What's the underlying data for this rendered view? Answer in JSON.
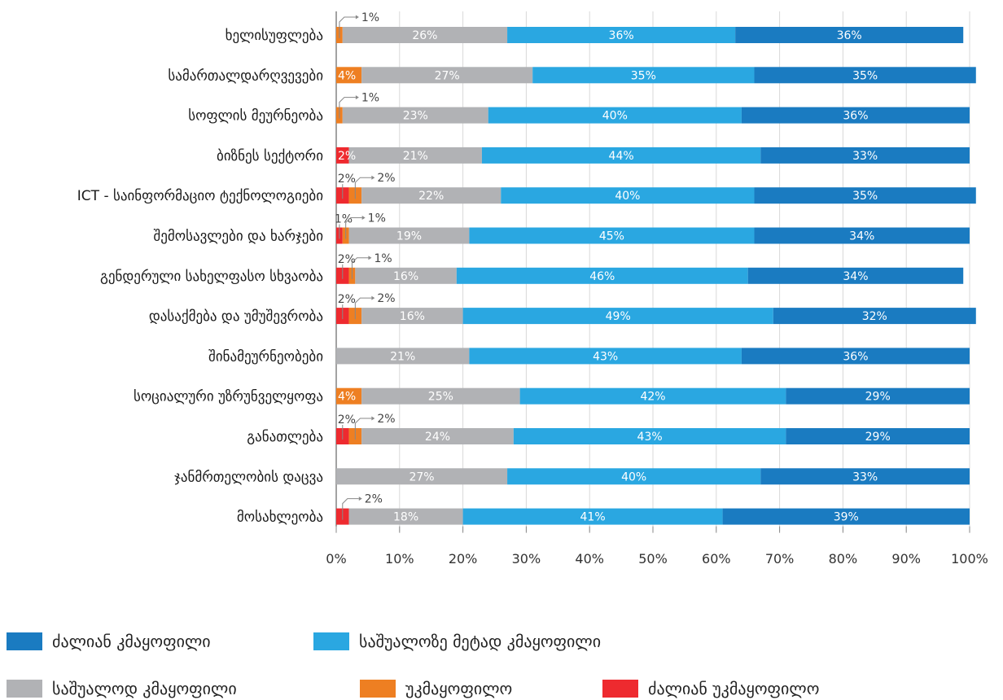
{
  "chart_data": {
    "type": "bar",
    "orientation": "horizontal",
    "stacked": true,
    "xlim": [
      0,
      100
    ],
    "x_tick_labels": [
      "0%",
      "10%",
      "20%",
      "30%",
      "40%",
      "50%",
      "60%",
      "70%",
      "80%",
      "90%",
      "100%"
    ],
    "grid": true,
    "legend_position": "bottom",
    "categories": [
      "ხელისუფლება",
      "სამართალდარღვევები",
      "სოფლის მეურნეობა",
      "ბიზნეს სექტორი",
      "ICT - საინფორმაციო ტექნოლოგიები",
      "შემოსავლები და ხარჯები",
      "გენდერული სახელფასო სხვაობა",
      "დასაქმება და უმუშევრობა",
      "შინამეურნეობები",
      "სოციალური უზრუნველყოფა",
      "განათლება",
      "ჯანმრთელობის დაცვა",
      "მოსახლეობა"
    ],
    "series": [
      {
        "name": "ძალიან უკმაყოფილო",
        "color": "#ee2a2f",
        "values": [
          0,
          0,
          0,
          2,
          2,
          1,
          2,
          2,
          0,
          0,
          2,
          0,
          2
        ]
      },
      {
        "name": "უკმაყოფილო",
        "color": "#ee7f22",
        "values": [
          1,
          4,
          1,
          0,
          2,
          1,
          1,
          2,
          0,
          4,
          2,
          0,
          0
        ]
      },
      {
        "name": "საშუალოდ კმაყოფილი",
        "color": "#b1b2b5",
        "values": [
          26,
          27,
          23,
          21,
          22,
          19,
          16,
          16,
          21,
          25,
          24,
          27,
          18
        ]
      },
      {
        "name": "საშუალოზე მეტად კმაყოფილი",
        "color": "#2aa7e1",
        "values": [
          36,
          35,
          40,
          44,
          40,
          45,
          46,
          49,
          43,
          42,
          43,
          40,
          41
        ]
      },
      {
        "name": "ძალიან კმაყოფილი",
        "color": "#1a7bc1",
        "values": [
          36,
          35,
          36,
          33,
          35,
          34,
          34,
          32,
          36,
          29,
          29,
          33,
          39
        ]
      }
    ],
    "legend_order": [
      "ძალიან კმაყოფილი",
      "საშუალოზე მეტად კმაყოფილი",
      "საშუალოდ კმაყოფილი",
      "უკმაყოფილო",
      "ძალიან უკმაყოფილო"
    ]
  }
}
